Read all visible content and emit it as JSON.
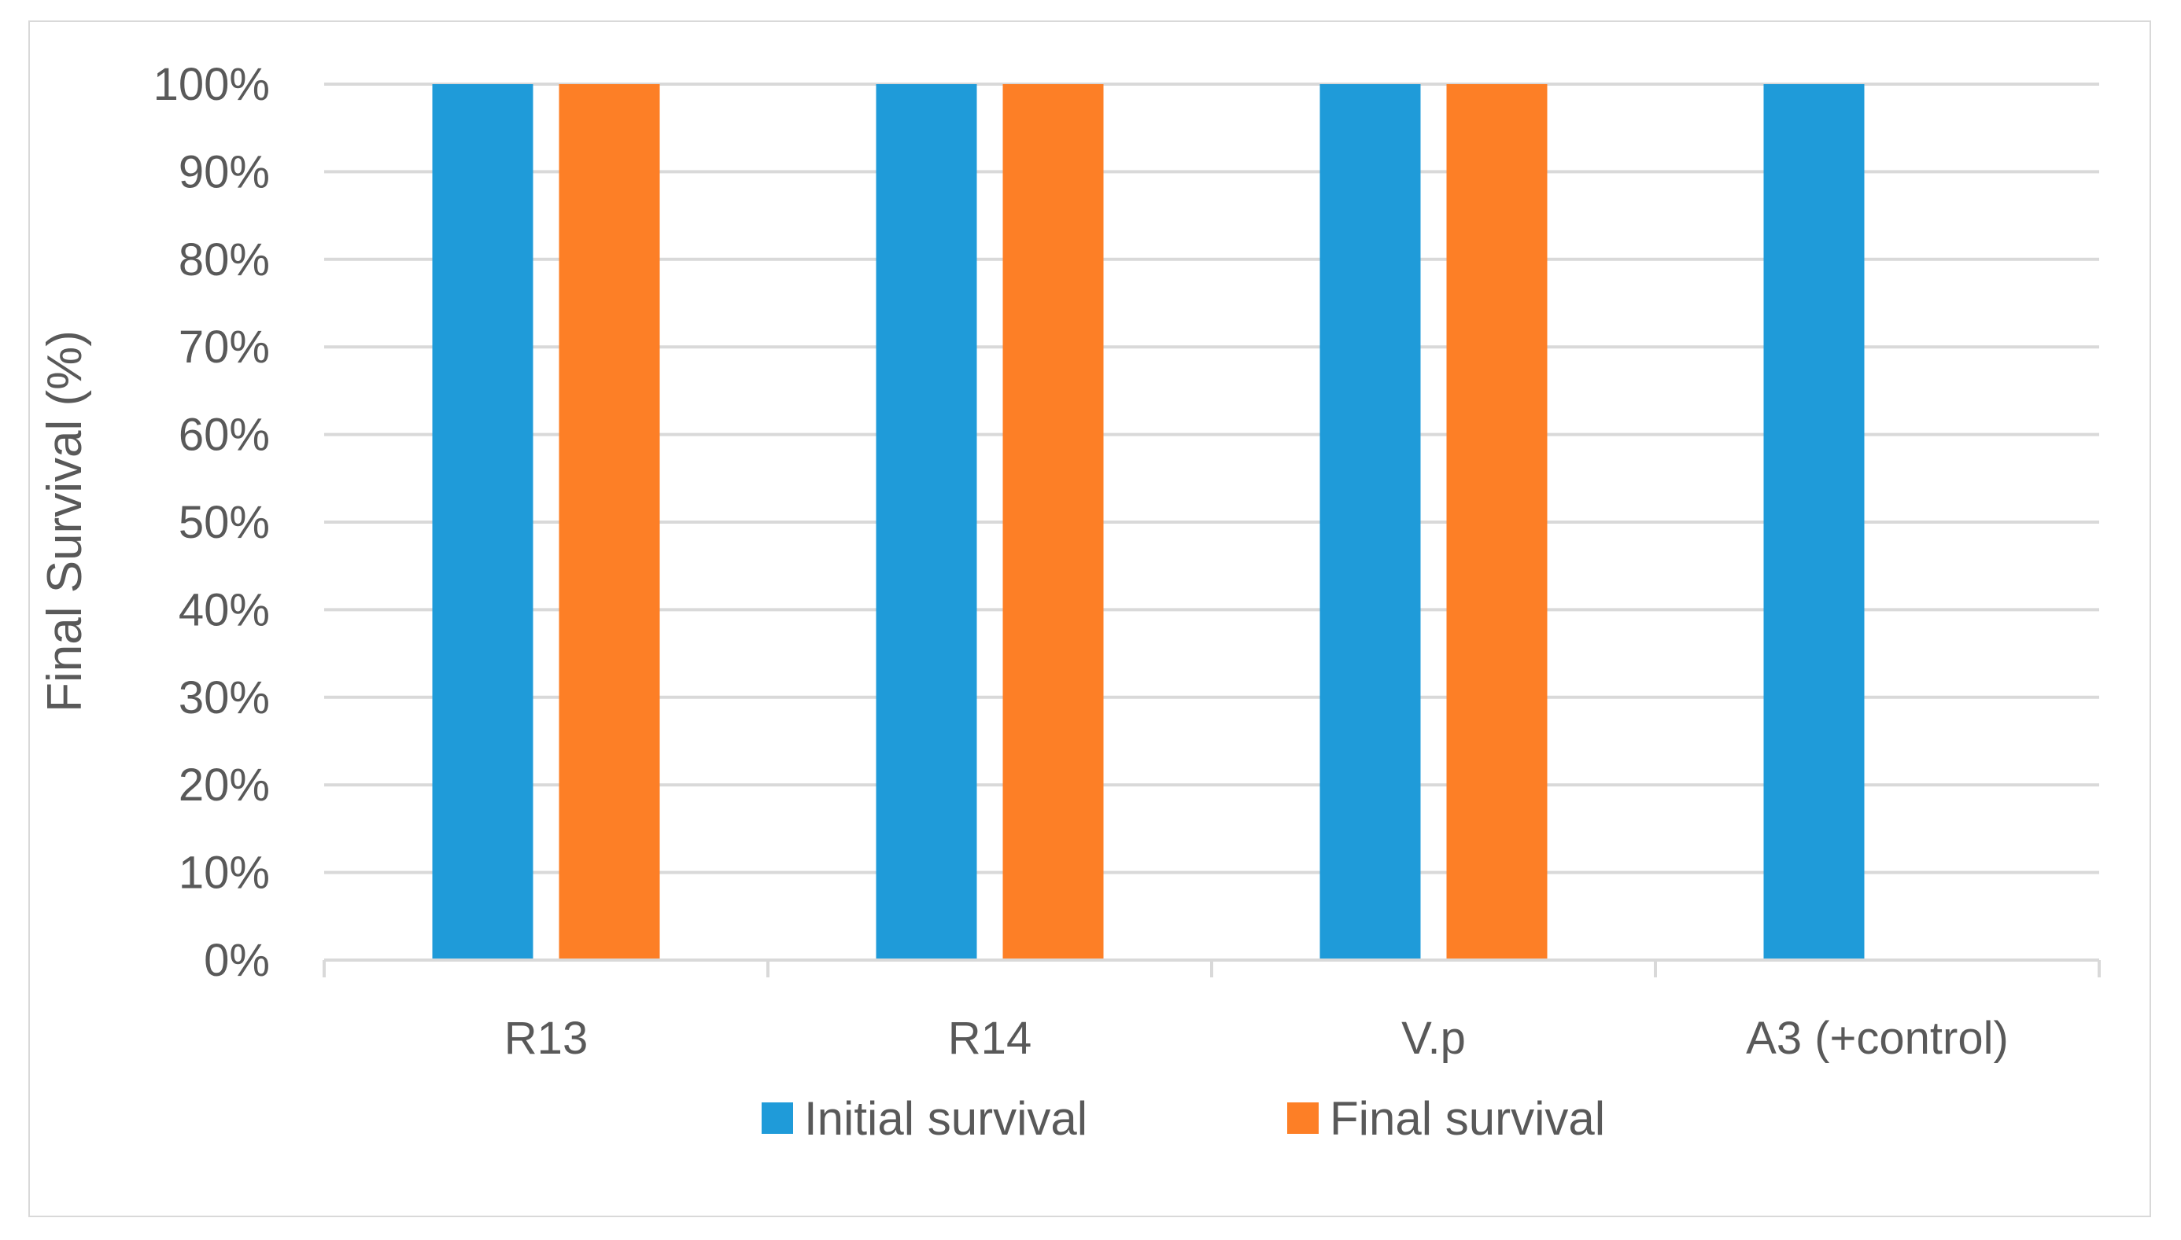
{
  "chart_data": {
    "type": "bar",
    "title": "",
    "xlabel": "",
    "ylabel": "Final Survival (%)",
    "ylim": [
      0,
      100
    ],
    "y_ticks": [
      "0%",
      "10%",
      "20%",
      "30%",
      "40%",
      "50%",
      "60%",
      "70%",
      "80%",
      "90%",
      "100%"
    ],
    "grid": true,
    "legend_position": "bottom",
    "categories": [
      "R13",
      "R14",
      "V.p",
      "A3 (+control)"
    ],
    "series": [
      {
        "name": "Initial survival",
        "color": "#1f9bd9",
        "values": [
          100,
          100,
          100,
          100
        ]
      },
      {
        "name": "Final survival",
        "color": "#fd7f26",
        "values": [
          100,
          100,
          100,
          0
        ]
      }
    ]
  }
}
